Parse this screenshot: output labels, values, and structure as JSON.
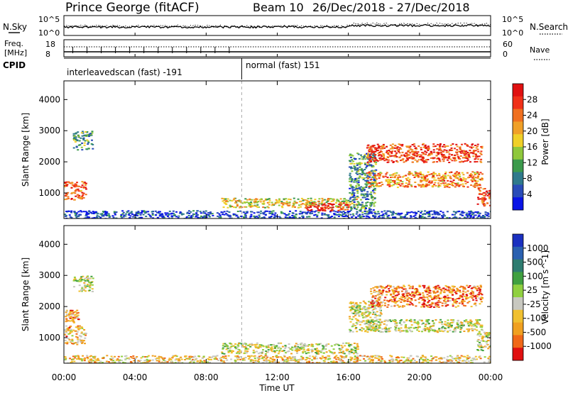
{
  "header": {
    "station": "Prince George (fitACF)",
    "beam_label": "Beam 10",
    "date_range": "26/Dec/2018 - 27/Dec/2018"
  },
  "chart_data": {
    "type": "heatmap",
    "x_ticks": [
      "00:00",
      "04:00",
      "08:00",
      "12:00",
      "16:00",
      "20:00",
      "00:00"
    ],
    "x_range_hours": [
      0,
      24
    ],
    "xlabel": "Time UT",
    "cpid_split_hour": 10,
    "panels": {
      "nsky": {
        "label": "N.Sky",
        "right_label": "N.Search",
        "left_ticks": [
          "10^5",
          "10^0"
        ],
        "right_ticks": [
          "10^5",
          "10^0"
        ]
      },
      "freq": {
        "label_line1": "Freq.",
        "label_line2": "[MHz]",
        "left_ticks": [
          "18",
          "8"
        ],
        "right_label": "Nave",
        "right_ticks": [
          "60",
          "0"
        ]
      },
      "cpid": {
        "label": "CPID",
        "segments": [
          {
            "start_hour": 0,
            "end_hour": 10,
            "name": "interleavedscan (fast) -191"
          },
          {
            "start_hour": 10,
            "end_hour": 24,
            "name": "normal (fast) 151"
          }
        ]
      },
      "power": {
        "ylabel": "Slant Range [km]",
        "y_ticks": [
          "1000",
          "2000",
          "3000",
          "4000"
        ],
        "y_tick_values": [
          1000,
          2000,
          3000,
          4000
        ],
        "y_range_km": [
          180,
          4600
        ],
        "colorbar_label": "Power [dB]",
        "colorbar_ticks": [
          "4",
          "8",
          "12",
          "16",
          "20",
          "24",
          "28"
        ],
        "colors": [
          "#0a14e6",
          "#2a4cb8",
          "#2f7a8c",
          "#3c9a4c",
          "#8fc83c",
          "#f0d028",
          "#f0a028",
          "#f07020",
          "#f03018",
          "#e01010"
        ],
        "regions": [
          {
            "t0": 0.0,
            "t1": 1.2,
            "r0": 800,
            "r1": 1400,
            "level": 0.8
          },
          {
            "t0": 0.5,
            "t1": 1.6,
            "r0": 2400,
            "r1": 3000,
            "level": 0.35
          },
          {
            "t0": 0.0,
            "t1": 24.0,
            "r0": 180,
            "r1": 450,
            "level": 0.12
          },
          {
            "t0": 8.8,
            "t1": 16.5,
            "r0": 550,
            "r1": 850,
            "level": 0.55
          },
          {
            "t0": 13.5,
            "t1": 16.0,
            "r0": 450,
            "r1": 700,
            "level": 0.9
          },
          {
            "t0": 16.0,
            "t1": 17.5,
            "r0": 400,
            "r1": 2300,
            "level": 0.3
          },
          {
            "t0": 17.0,
            "t1": 23.5,
            "r0": 2000,
            "r1": 2600,
            "level": 0.85
          },
          {
            "t0": 17.0,
            "t1": 23.5,
            "r0": 1200,
            "r1": 1700,
            "level": 0.7
          },
          {
            "t0": 23.2,
            "t1": 24.0,
            "r0": 600,
            "r1": 1200,
            "level": 0.85
          }
        ]
      },
      "velocity": {
        "ylabel": "Slant Range [km]",
        "y_ticks": [
          "1000",
          "2000",
          "3000",
          "4000"
        ],
        "y_tick_values": [
          1000,
          2000,
          3000,
          4000
        ],
        "y_range_km": [
          180,
          4600
        ],
        "colorbar_label": "Velocity [m s^-1]",
        "colorbar_ticks": [
          "1000",
          "500",
          "100",
          "25",
          "-25",
          "-100",
          "-500",
          "-1000"
        ],
        "colors": [
          "#1a30c0",
          "#2a60b0",
          "#2e7c70",
          "#40a040",
          "#90d040",
          "#c8c8c0",
          "#f0c030",
          "#f0a020",
          "#f06818",
          "#e01010"
        ],
        "regions": [
          {
            "t0": 0.0,
            "t1": 1.2,
            "r0": 800,
            "r1": 1400,
            "level": 0.7
          },
          {
            "t0": 0.0,
            "t1": 0.8,
            "r0": 1500,
            "r1": 1900,
            "level": 0.75
          },
          {
            "t0": 0.5,
            "t1": 1.6,
            "r0": 2500,
            "r1": 3000,
            "level": 0.55
          },
          {
            "t0": 0.0,
            "t1": 24.0,
            "r0": 180,
            "r1": 450,
            "level": 0.65
          },
          {
            "t0": 8.8,
            "t1": 16.5,
            "r0": 500,
            "r1": 850,
            "level": 0.55
          },
          {
            "t0": 16.0,
            "t1": 17.8,
            "r0": 1200,
            "r1": 2200,
            "level": 0.55
          },
          {
            "t0": 17.2,
            "t1": 23.5,
            "r0": 2000,
            "r1": 2700,
            "level": 0.8
          },
          {
            "t0": 17.0,
            "t1": 23.5,
            "r0": 1200,
            "r1": 1600,
            "level": 0.55
          },
          {
            "t0": 23.2,
            "t1": 24.0,
            "r0": 600,
            "r1": 1200,
            "level": 0.55
          }
        ]
      }
    }
  }
}
